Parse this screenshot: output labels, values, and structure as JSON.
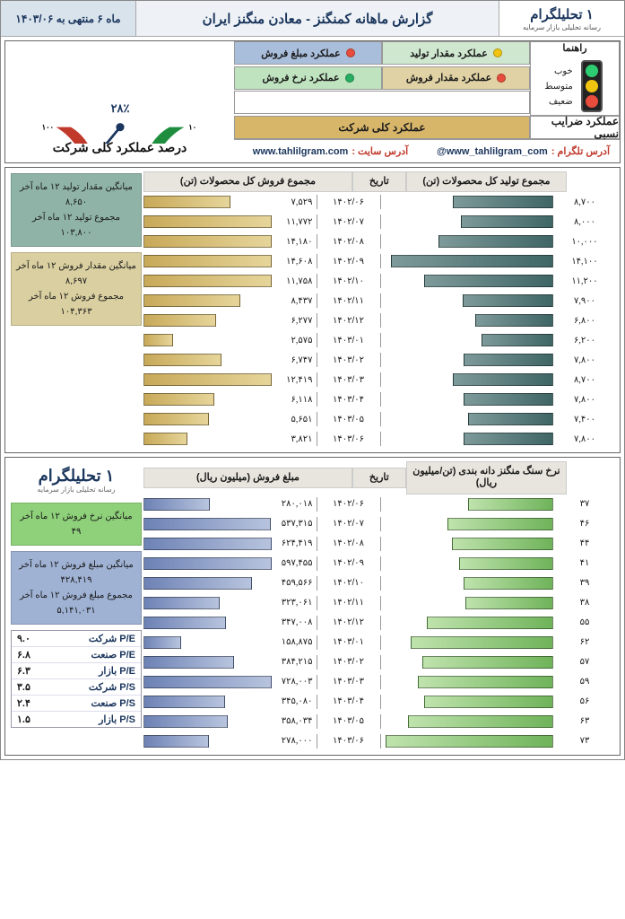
{
  "brand": {
    "name": "تحلیلگرام",
    "one": "۱",
    "tagline": "رسانه تحلیلی بازار سرمایه"
  },
  "header": {
    "title": "گزارش ماهانه کمنگنز - معادن منگنز ایران",
    "period": "ماه ۶ منتهی به ۱۴۰۳/۰۶"
  },
  "legend": {
    "guide_label": "راهنما",
    "good": "خوب",
    "mid": "متوسط",
    "weak": "ضعیف",
    "items": [
      {
        "label": "عملکرد مقدار تولید",
        "bg": "#cfe7cf",
        "dot": "#f1c40f"
      },
      {
        "label": "عملکرد مبلغ فروش",
        "bg": "#a9bedb",
        "dot": "#e74c3c"
      },
      {
        "label": "عملکرد مقدار فروش",
        "bg": "#e0d2a4",
        "dot": "#e74c3c"
      },
      {
        "label": "عملکرد نرخ فروش",
        "bg": "#bfe3bf",
        "dot": "#27ae60"
      }
    ],
    "relative_label": "عملکرد ضرایب نسبی",
    "overall_label": "عملکرد کلی شرکت",
    "overall_bg": "#d7b66a",
    "traffic_colors": [
      "#2ecc71",
      "#f1c40f",
      "#e74c3c"
    ]
  },
  "links": {
    "tg_label": "آدرس تلگرام :",
    "tg_val": "@www_tahlilgram_com",
    "site_label": "آدرس سایت :",
    "site_val": "www.tahlilgram.com"
  },
  "gauge": {
    "caption": "درصد عملکرد کلی شرکت",
    "value": 28,
    "value_text": "۲۸٪",
    "ticks": [
      "۱۰۰",
      "۹۰",
      "۸۰",
      "۷۰",
      "۶۰",
      "۵۰",
      "۴۰",
      "۳۰",
      "۲۰",
      "۱۰"
    ],
    "arc_green": "#1e8e3e",
    "arc_yellow": "#f1c40f",
    "arc_red": "#c0392b",
    "needle": "#1b365d"
  },
  "panel1": {
    "col_right_head": "مجموع فروش کل محصولات\n(تن)",
    "col_left_head": "مجموع تولید کل محصولات\n(تن)",
    "date_head": "تاریخ",
    "right_color_from": "#e6d59a",
    "right_color_to": "#c8a959",
    "left_color_from": "#7e9a9a",
    "left_color_to": "#3f6565",
    "right_max": 15000,
    "left_max": 15000,
    "rows": [
      {
        "d": "۱۴۰۲/۰۶",
        "r": 7529,
        "rS": "۷,۵۲۹",
        "l": 8700,
        "lS": "۸,۷۰۰"
      },
      {
        "d": "۱۴۰۲/۰۷",
        "r": 11772,
        "rS": "۱۱,۷۷۲",
        "l": 8000,
        "lS": "۸,۰۰۰"
      },
      {
        "d": "۱۴۰۲/۰۸",
        "r": 14180,
        "rS": "۱۴,۱۸۰",
        "l": 10000,
        "lS": "۱۰,۰۰۰"
      },
      {
        "d": "۱۴۰۲/۰۹",
        "r": 14608,
        "rS": "۱۴,۶۰۸",
        "l": 14100,
        "lS": "۱۴,۱۰۰"
      },
      {
        "d": "۱۴۰۲/۱۰",
        "r": 11758,
        "rS": "۱۱,۷۵۸",
        "l": 11200,
        "lS": "۱۱,۲۰۰"
      },
      {
        "d": "۱۴۰۲/۱۱",
        "r": 8437,
        "rS": "۸,۴۳۷",
        "l": 7900,
        "lS": "۷,۹۰۰"
      },
      {
        "d": "۱۴۰۲/۱۲",
        "r": 6277,
        "rS": "۶,۲۷۷",
        "l": 6800,
        "lS": "۶,۸۰۰"
      },
      {
        "d": "۱۴۰۳/۰۱",
        "r": 2575,
        "rS": "۲,۵۷۵",
        "l": 6200,
        "lS": "۶,۲۰۰"
      },
      {
        "d": "۱۴۰۳/۰۲",
        "r": 6747,
        "rS": "۶,۷۴۷",
        "l": 7800,
        "lS": "۷,۸۰۰"
      },
      {
        "d": "۱۴۰۳/۰۳",
        "r": 12419,
        "rS": "۱۲,۴۱۹",
        "l": 8700,
        "lS": "۸,۷۰۰"
      },
      {
        "d": "۱۴۰۳/۰۴",
        "r": 6118,
        "rS": "۶,۱۱۸",
        "l": 7800,
        "lS": "۷,۸۰۰"
      },
      {
        "d": "۱۴۰۳/۰۵",
        "r": 5651,
        "rS": "۵,۶۵۱",
        "l": 7400,
        "lS": "۷,۴۰۰"
      },
      {
        "d": "۱۴۰۳/۰۶",
        "r": 3821,
        "rS": "۳,۸۲۱",
        "l": 7800,
        "lS": "۷,۸۰۰"
      }
    ],
    "box1": {
      "bg": "#8fb3a6",
      "lines": [
        "میانگین مقدار تولید ۱۲ ماه آخر",
        "۸,۶۵۰",
        "مجموع تولید ۱۲ ماه آخر",
        "۱۰۳,۸۰۰"
      ]
    },
    "box2": {
      "bg": "#d9cfa0",
      "lines": [
        "میانگین مقدار فروش ۱۲ ماه آخر",
        "۸,۶۹۷",
        "مجموع فروش ۱۲ ماه آخر",
        "۱۰۴,۳۶۳"
      ]
    }
  },
  "panel2": {
    "col_right_head": "مبلغ فروش (میلیون ریال)",
    "col_left_head": "نرخ سنگ منگنز دانه بندی\n(تن/میلیون ریال)",
    "date_head": "تاریخ",
    "right_color_from": "#b8c4de",
    "right_color_to": "#6d82b5",
    "left_color_from": "#bfe3ad",
    "left_color_to": "#6fb35a",
    "right_max": 730000,
    "left_max": 75,
    "rows": [
      {
        "d": "۱۴۰۲/۰۶",
        "r": 280018,
        "rS": "۲۸۰,۰۱۸",
        "l": 37,
        "lS": "۳۷"
      },
      {
        "d": "۱۴۰۲/۰۷",
        "r": 537315,
        "rS": "۵۳۷,۳۱۵",
        "l": 46,
        "lS": "۴۶"
      },
      {
        "d": "۱۴۰۲/۰۸",
        "r": 624419,
        "rS": "۶۲۴,۴۱۹",
        "l": 44,
        "lS": "۴۴"
      },
      {
        "d": "۱۴۰۲/۰۹",
        "r": 597455,
        "rS": "۵۹۷,۴۵۵",
        "l": 41,
        "lS": "۴۱"
      },
      {
        "d": "۱۴۰۲/۱۰",
        "r": 459566,
        "rS": "۴۵۹,۵۶۶",
        "l": 39,
        "lS": "۳۹"
      },
      {
        "d": "۱۴۰۲/۱۱",
        "r": 323061,
        "rS": "۳۲۳,۰۶۱",
        "l": 38,
        "lS": "۳۸"
      },
      {
        "d": "۱۴۰۲/۱۲",
        "r": 347008,
        "rS": "۳۴۷,۰۰۸",
        "l": 55,
        "lS": "۵۵"
      },
      {
        "d": "۱۴۰۳/۰۱",
        "r": 158875,
        "rS": "۱۵۸,۸۷۵",
        "l": 62,
        "lS": "۶۲"
      },
      {
        "d": "۱۴۰۳/۰۲",
        "r": 384215,
        "rS": "۳۸۴,۲۱۵",
        "l": 57,
        "lS": "۵۷"
      },
      {
        "d": "۱۴۰۳/۰۳",
        "r": 728003,
        "rS": "۷۲۸,۰۰۳",
        "l": 59,
        "lS": "۵۹"
      },
      {
        "d": "۱۴۰۳/۰۴",
        "r": 345080,
        "rS": "۳۴۵,۰۸۰",
        "l": 56,
        "lS": "۵۶"
      },
      {
        "d": "۱۴۰۳/۰۵",
        "r": 358034,
        "rS": "۳۵۸,۰۳۴",
        "l": 63,
        "lS": "۶۳"
      },
      {
        "d": "۱۴۰۳/۰۶",
        "r": 278000,
        "rS": "۲۷۸,۰۰۰",
        "l": 73,
        "lS": "۷۳"
      }
    ],
    "box1": {
      "bg": "#8fd17a",
      "lines": [
        "میانگین نرخ فروش ۱۲ ماه آخر",
        "۴۹"
      ]
    },
    "box2": {
      "bg": "#9fb2d4",
      "lines": [
        "میانگین مبلغ فروش ۱۲ ماه آخر",
        "۴۲۸,۴۱۹",
        "مجموع مبلغ فروش ۱۲ ماه آخر",
        "۵,۱۴۱,۰۳۱"
      ]
    },
    "ratios": [
      {
        "k": "P/E شرکت",
        "v": "۹.۰"
      },
      {
        "k": "P/E صنعت",
        "v": "۶.۸"
      },
      {
        "k": "P/E بازار",
        "v": "۶.۳"
      },
      {
        "k": "P/S شرکت",
        "v": "۳.۵"
      },
      {
        "k": "P/S صنعت",
        "v": "۲.۴"
      },
      {
        "k": "P/S بازار",
        "v": "۱.۵"
      }
    ]
  }
}
